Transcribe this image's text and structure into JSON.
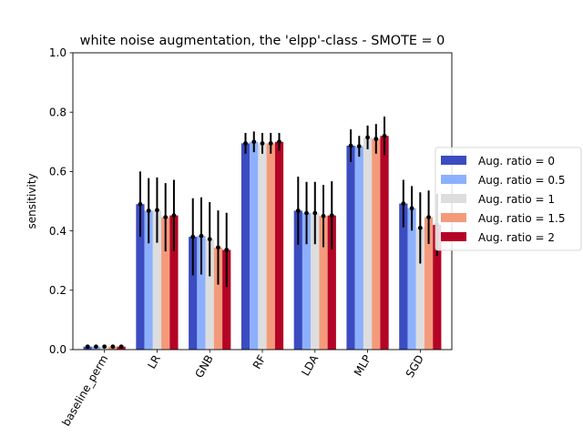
{
  "chart_data": {
    "type": "bar",
    "title": "white noise augmentation, the 'elpp'-class - SMOTE = 0",
    "xlabel": "",
    "ylabel": "sensitivity",
    "ylim": [
      0,
      1
    ],
    "yticks": [
      "0.0",
      "0.2",
      "0.4",
      "0.6",
      "0.8",
      "1.0"
    ],
    "grid": false,
    "legend_position": "right",
    "categories": [
      "baseline_perm",
      "LR",
      "GNB",
      "RF",
      "LDA",
      "MLP",
      "SGD"
    ],
    "series": [
      {
        "name": "Aug. ratio = 0",
        "color": "#3b4cc0",
        "values": [
          0.01,
          0.49,
          0.38,
          0.695,
          0.468,
          0.687,
          0.492
        ],
        "errors": [
          0.0,
          0.11,
          0.13,
          0.035,
          0.115,
          0.055,
          0.08
        ]
      },
      {
        "name": "Aug. ratio = 0.5",
        "color": "#8db0fe",
        "values": [
          0.01,
          0.468,
          0.383,
          0.7,
          0.46,
          0.685,
          0.476
        ],
        "errors": [
          0.0,
          0.11,
          0.13,
          0.035,
          0.105,
          0.035,
          0.075
        ]
      },
      {
        "name": "Aug. ratio = 1",
        "color": "#dddddd",
        "values": [
          0.01,
          0.47,
          0.372,
          0.695,
          0.46,
          0.715,
          0.41
        ],
        "errors": [
          0.0,
          0.11,
          0.125,
          0.035,
          0.105,
          0.04,
          0.12
        ]
      },
      {
        "name": "Aug. ratio = 1.5",
        "color": "#f49a7b",
        "values": [
          0.01,
          0.446,
          0.344,
          0.695,
          0.45,
          0.71,
          0.446
        ],
        "errors": [
          0.0,
          0.115,
          0.125,
          0.035,
          0.105,
          0.05,
          0.09
        ]
      },
      {
        "name": "Aug. ratio = 2",
        "color": "#b40426",
        "values": [
          0.01,
          0.452,
          0.336,
          0.7,
          0.452,
          0.72,
          0.42
        ],
        "errors": [
          0.0,
          0.12,
          0.125,
          0.03,
          0.115,
          0.065,
          0.105
        ]
      }
    ]
  }
}
